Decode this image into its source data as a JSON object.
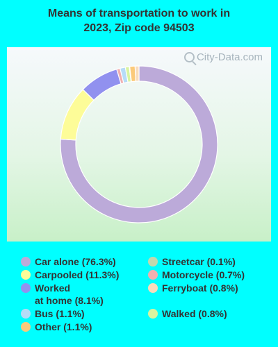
{
  "title_lines": [
    "Means of transportation to work in",
    "2023, Zip code 94503"
  ],
  "watermark": "City-Data.com",
  "colors": {
    "background": "#00ffff",
    "title": "#333333"
  },
  "chart_data": {
    "type": "pie",
    "donut": true,
    "title": "Means of transportation to work in 2023, Zip code 94503",
    "slices": [
      {
        "name": "Car alone",
        "value": 76.3,
        "label": "Car alone (76.3%)",
        "color": "#bcaad9"
      },
      {
        "name": "Carpooled",
        "value": 11.3,
        "label": "Carpooled (11.3%)",
        "color": "#fdfc98"
      },
      {
        "name": "Worked at home",
        "value": 8.1,
        "label": "Worked\nat home (8.1%)",
        "color": "#9191ef"
      },
      {
        "name": "Motorcycle",
        "value": 0.7,
        "label": "Motorcycle (0.7%)",
        "color": "#f0b0b0"
      },
      {
        "name": "Bus",
        "value": 1.1,
        "label": "Bus (1.1%)",
        "color": "#b6dcf7"
      },
      {
        "name": "Walked",
        "value": 0.8,
        "label": "Walked (0.8%)",
        "color": "#d8f4a0"
      },
      {
        "name": "Streetcar",
        "value": 0.1,
        "label": "Streetcar (0.1%)",
        "color": "#c2d8ae"
      },
      {
        "name": "Other",
        "value": 1.1,
        "label": "Other (1.1%)",
        "color": "#fbca7a"
      },
      {
        "name": "Ferryboat",
        "value": 0.8,
        "label": "Ferryboat (0.8%)",
        "color": "#f8dcbc"
      }
    ],
    "legend": [
      {
        "label": "Car alone (76.3%)",
        "color": "#bcaad9"
      },
      {
        "label": "Carpooled (11.3%)",
        "color": "#fdfc98"
      },
      {
        "label": "Worked\nat home (8.1%)",
        "color": "#9191ef"
      },
      {
        "label": "Bus (1.1%)",
        "color": "#b6dcf7"
      },
      {
        "label": "Other (1.1%)",
        "color": "#fbca7a"
      },
      {
        "label": "Streetcar (0.1%)",
        "color": "#c2d8ae"
      },
      {
        "label": "Motorcycle (0.7%)",
        "color": "#f0b0b0"
      },
      {
        "label": "Ferryboat (0.8%)",
        "color": "#f8dcbc"
      },
      {
        "label": "Walked (0.8%)",
        "color": "#d8f4a0"
      }
    ],
    "legend_placement": "bottom"
  }
}
